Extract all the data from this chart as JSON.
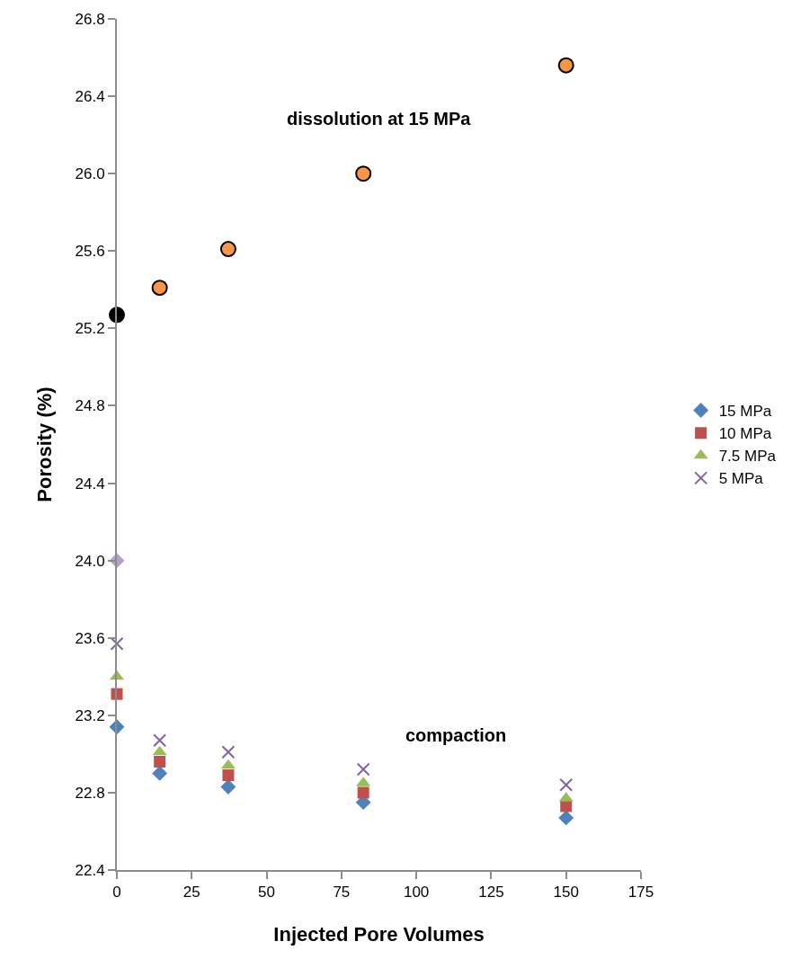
{
  "chart_data": {
    "type": "scatter",
    "xlabel": "Injected Pore Volumes",
    "ylabel": "Porosity (%)",
    "xlim": [
      0,
      175
    ],
    "xticks": [
      0,
      25,
      50,
      75,
      100,
      125,
      150,
      175
    ],
    "ylim": [
      22.4,
      26.8
    ],
    "yticks": [
      22.4,
      22.8,
      23.2,
      23.6,
      {
        "value": 24,
        "label": "24.0"
      },
      24.4,
      24.8,
      25.2,
      25.6,
      {
        "value": 26,
        "label": "26.0"
      },
      26.4,
      26.8
    ],
    "grid": false,
    "legend": "right",
    "series": [
      {
        "name": "15 MPa",
        "color": "#4f81bd",
        "marker": "diamond",
        "x": [
          0,
          14.3,
          37.2,
          82.3,
          150
        ],
        "values": [
          23.14,
          22.9,
          22.83,
          22.75,
          22.67
        ]
      },
      {
        "name": "10 MPa",
        "color": "#c0504d",
        "marker": "square",
        "x": [
          0,
          14.3,
          37.2,
          82.3,
          150
        ],
        "values": [
          23.31,
          22.96,
          22.89,
          22.8,
          22.73
        ]
      },
      {
        "name": "7.5 MPa",
        "color": "#9bbb59",
        "marker": "triangle",
        "x": [
          0,
          14.3,
          37.2,
          82.3,
          150
        ],
        "values": [
          23.4,
          23.01,
          22.94,
          22.85,
          22.77
        ]
      },
      {
        "name": "5 MPa",
        "color": "#8064a2",
        "marker": "cross",
        "x": [
          0,
          14.3,
          37.2,
          82.3,
          150
        ],
        "values": [
          23.57,
          23.07,
          23.01,
          22.92,
          22.84
        ]
      },
      {
        "color": "#f79646",
        "marker": "circle",
        "x": [
          14.3,
          37.2,
          82.3,
          150
        ],
        "values": [
          25.41,
          25.61,
          26.0,
          26.56
        ]
      },
      {
        "color": "#000000",
        "marker": "circle",
        "x": [
          0
        ],
        "values": [
          25.27
        ]
      },
      {
        "color": "#b3a2c7",
        "marker": "diamond",
        "x": [
          0
        ],
        "values": [
          24.0
        ]
      }
    ],
    "annotations": [
      "dissolution at 15 MPa",
      "compaction"
    ]
  }
}
